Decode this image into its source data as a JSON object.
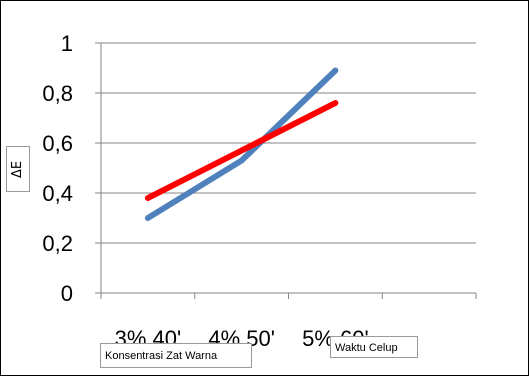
{
  "chart_data": {
    "type": "line",
    "categories": [
      "3% 40'",
      "4% 50'",
      "5% 60'"
    ],
    "series": [
      {
        "values": [
          0.3,
          0.53,
          0.89
        ],
        "color": "#4f81bd"
      },
      {
        "values": [
          0.38,
          0.57,
          0.76
        ],
        "color": "#ff0000"
      }
    ],
    "ylim": [
      0,
      1
    ],
    "yticks": [
      "0",
      "0,2",
      "0,4",
      "0,6",
      "0,8",
      "1"
    ],
    "xlabel": "Konsentrasi Zat Warna",
    "ylabel": "ΔE",
    "legend_text": "Waktu Celup",
    "grid": true
  }
}
